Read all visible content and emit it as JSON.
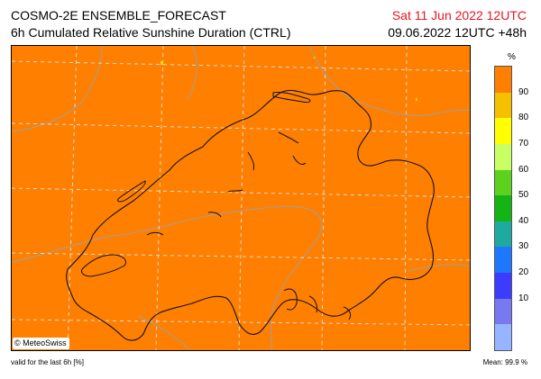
{
  "header": {
    "model_title": "COSMO-2E ENSEMBLE_FORECAST",
    "product_title": "6h Cumulated Relative Sunshine Duration (CTRL)",
    "valid_date": "Sat 11 Jun 2022 12UTC",
    "run_info": "09.06.2022 12UTC +48h"
  },
  "map": {
    "field_color": "#ff7f00",
    "copyright": "© MeteoSwiss"
  },
  "legend": {
    "unit": "%",
    "ticks": [
      "90",
      "80",
      "70",
      "60",
      "50",
      "40",
      "30",
      "20",
      "10"
    ],
    "colors": [
      "#ff7f00",
      "#f5c000",
      "#ffff00",
      "#c8ff64",
      "#5ad21e",
      "#14b414",
      "#1eaaa0",
      "#1e78ff",
      "#3c3cff",
      "#7878f0",
      "#96b4ff"
    ]
  },
  "footer": {
    "left": "valid for the last 6h [%]",
    "right": "Mean:   99.9 %"
  }
}
